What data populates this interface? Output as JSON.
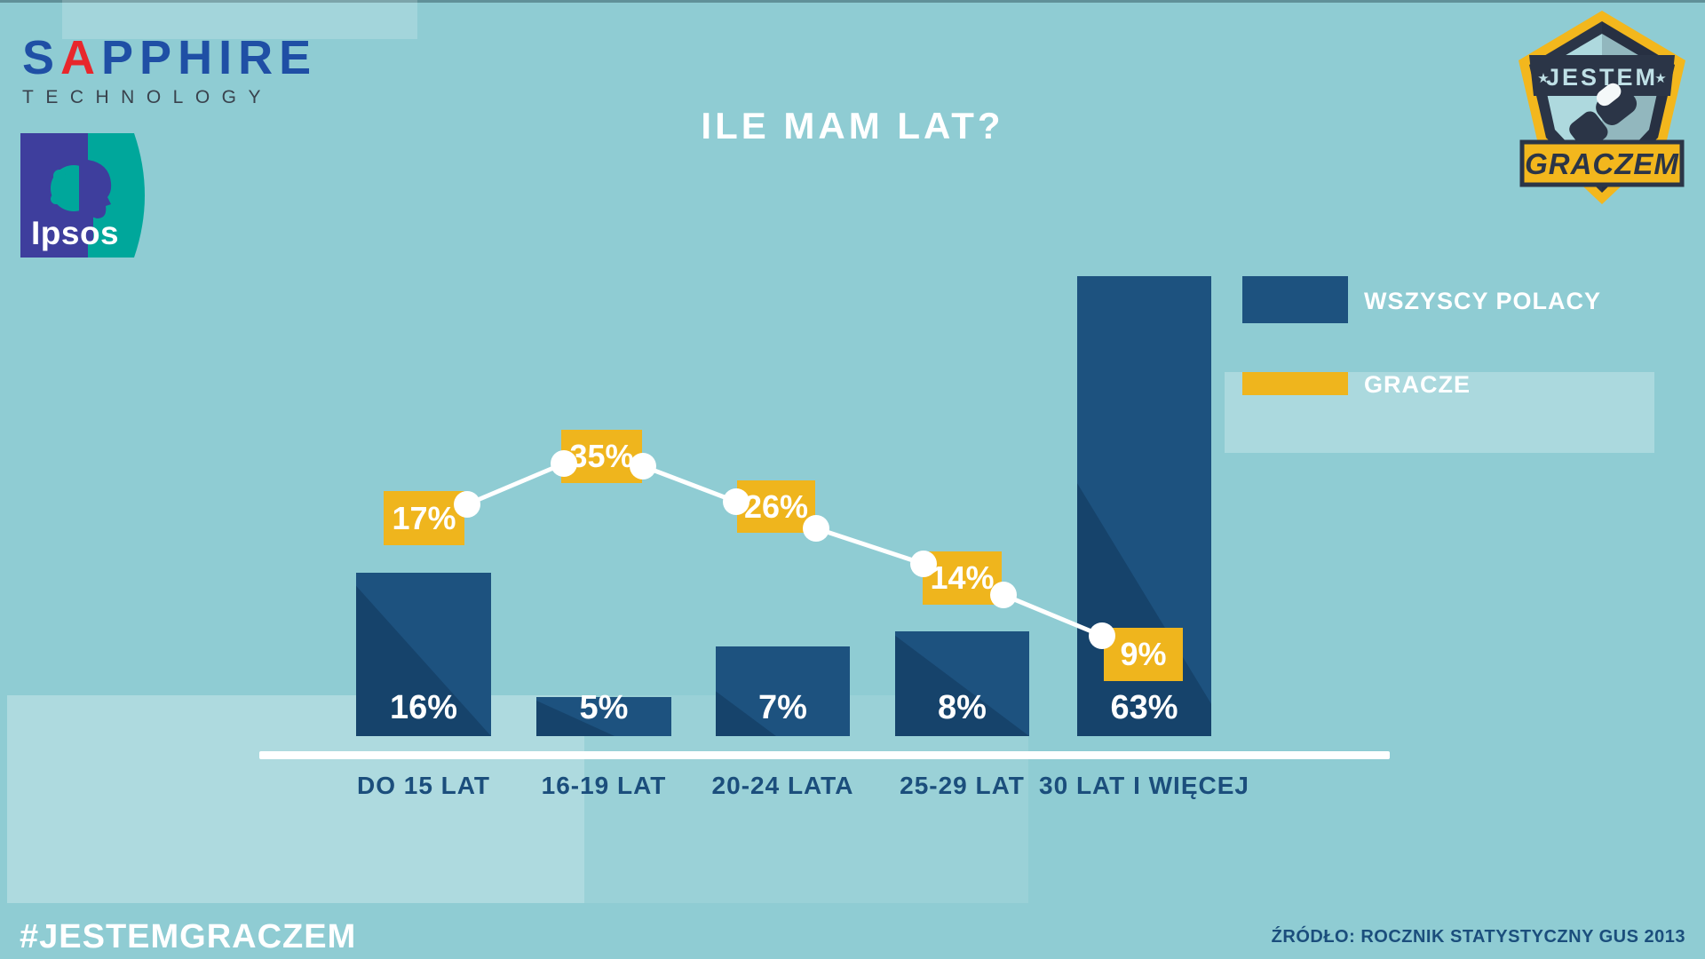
{
  "title": "ILE MAM LAT?",
  "branding": {
    "sapphire_s": "S",
    "sapphire_a": "A",
    "sapphire_rest": "PPHIRE",
    "sapphire_sub": "TECHNOLOGY",
    "ipsos": "Ipsos",
    "badge_top": "JESTEM",
    "badge_bottom": "GRACZEM"
  },
  "legend": {
    "items": [
      {
        "label": "WSZYSCY POLACY",
        "color": "#1d527f"
      },
      {
        "label": "GRACZE",
        "color": "#efb51d"
      }
    ]
  },
  "chart_data": {
    "type": "bar",
    "title": "ILE MAM LAT?",
    "categories": [
      "DO 15 LAT",
      "16-19 LAT",
      "20-24 LATA",
      "25-29 LAT",
      "30 LAT I WIĘCEJ"
    ],
    "series": [
      {
        "name": "WSZYSCY POLACY",
        "type": "bar",
        "color": "#1d527f",
        "unit": "%",
        "values": [
          16,
          5,
          7,
          8,
          63
        ]
      },
      {
        "name": "GRACZE",
        "type": "line",
        "color": "#efb51d",
        "point_color": "#ffffff",
        "unit": "%",
        "values": [
          17,
          35,
          26,
          14,
          9
        ]
      }
    ],
    "value_suffix": "%",
    "xlabel": "",
    "ylabel": "",
    "grid": false,
    "legend_position": "right",
    "source": "ŹRÓDŁO: ROCZNIK STATYSTYCZNY GUS 2013"
  },
  "footer": {
    "hashtag": "#JESTEMGRACZEM",
    "source": "ŹRÓDŁO: ROCZNIK STATYSTYCZNY GUS 2013"
  },
  "colors": {
    "background": "#8fccd3",
    "bar_light": "#1d527f",
    "bar_dark": "#16436b",
    "accent_yellow": "#efb51d",
    "text_navy": "#1b4e7c",
    "text_white": "#ffffff"
  }
}
